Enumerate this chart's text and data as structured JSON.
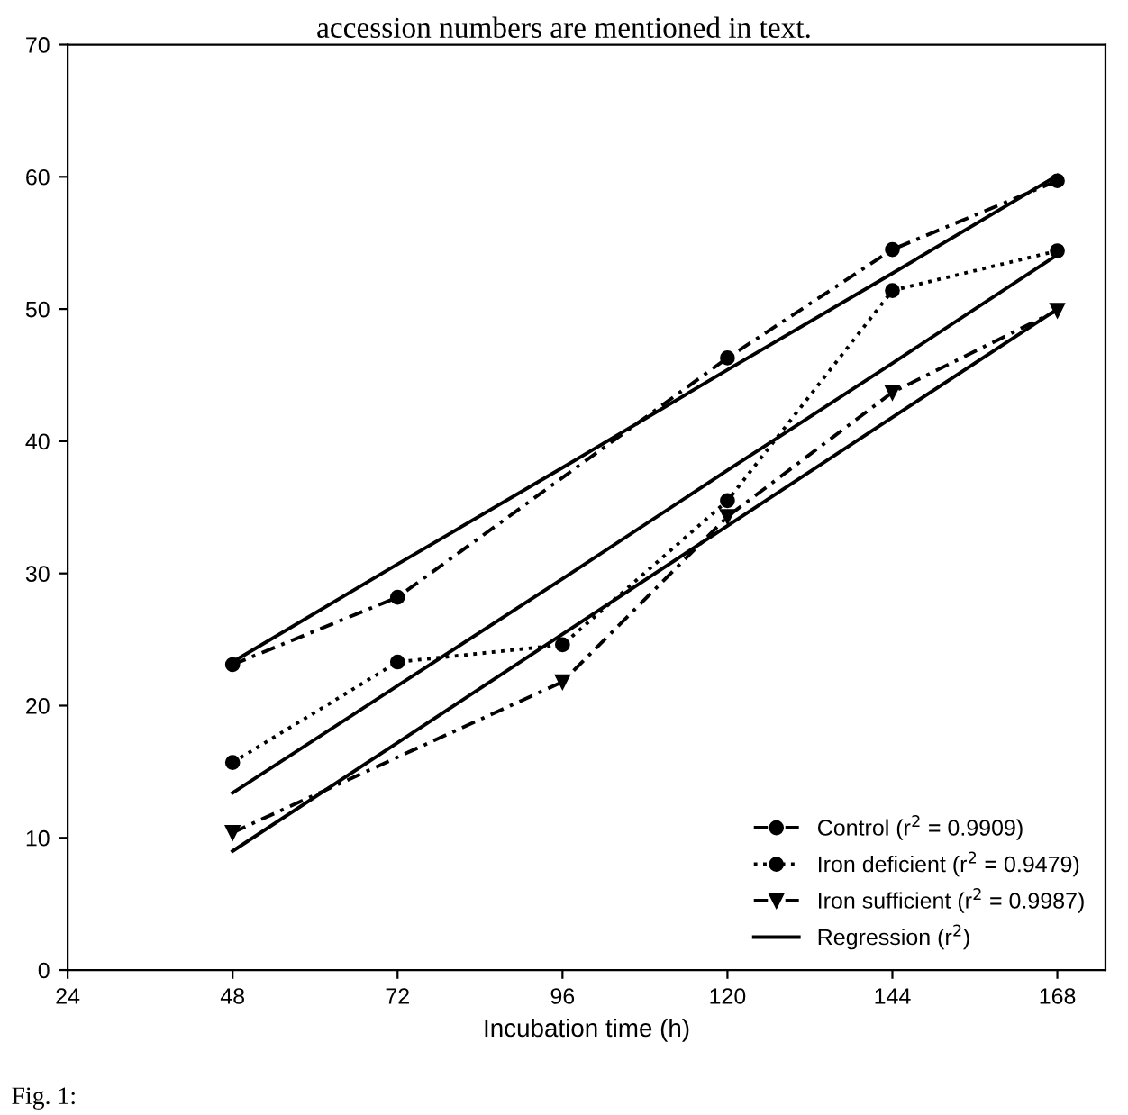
{
  "chart_data": {
    "type": "line",
    "xlabel": "Incubation time (h)",
    "x": [
      48,
      72,
      96,
      120,
      144,
      168
    ],
    "series": [
      {
        "name": "Control (r$^{2}$ = 0.9909)",
        "color": "#000000",
        "marker": "circle",
        "line_style": "dashed",
        "values": [
          23.1,
          28.2,
          null,
          46.3,
          54.5,
          59.7
        ]
      },
      {
        "name": "Iron deficient (r$^{2}$ = 0.9479)",
        "color": "#000000",
        "marker": "circle",
        "line_style": "dotted",
        "values": [
          15.7,
          23.3,
          24.6,
          35.5,
          51.4,
          54.4
        ]
      },
      {
        "name": "Iron sufficient (r$^{2}$ = 0.9987)",
        "color": "#000000",
        "marker": "triangle",
        "line_style": "dashed",
        "values": [
          10.4,
          null,
          21.8,
          34.3,
          43.7,
          49.9
        ]
      },
      {
        "name": "Regression (r$^{2}$)",
        "color": "#000000",
        "marker": "none",
        "line_style": "solid",
        "values": [
          23.3,
          30.7,
          38.0,
          45.4,
          52.7,
          60.1
        ]
      },
      {
        "color": "#000000",
        "marker": "none",
        "line_style": "solid",
        "values": [
          13.4,
          21.5,
          29.6,
          37.8,
          45.9,
          54.1
        ]
      },
      {
        "color": "#000000",
        "marker": "none",
        "line_style": "solid",
        "values": [
          9.0,
          17.2,
          25.4,
          33.6,
          41.8,
          50.0
        ]
      }
    ],
    "xlim": [
      24,
      175
    ],
    "ylim": [
      0,
      70
    ],
    "xticks": [
      24,
      48,
      72,
      96,
      120,
      144,
      168
    ],
    "yticks": [
      0,
      10,
      20,
      30,
      40,
      50,
      60,
      70
    ],
    "grid": false,
    "legend": "bottom right",
    "annotations": [
      "accession numbers are mentioned in text.",
      "Fig. 1:"
    ]
  }
}
